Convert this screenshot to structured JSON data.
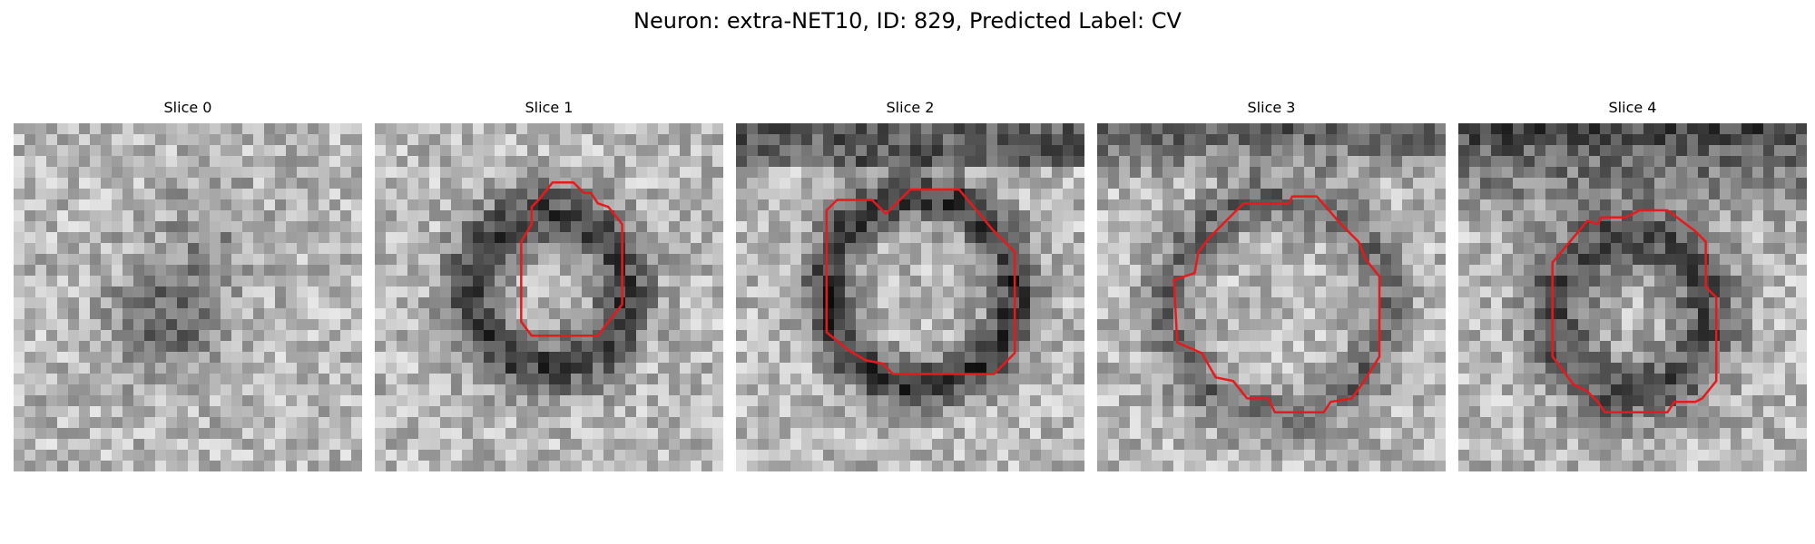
{
  "figure": {
    "title": "Neuron: extra-NET10, ID: 829, Predicted Label: CV"
  },
  "panels": [
    {
      "title": "Slice 0",
      "seed": 11,
      "contour": []
    },
    {
      "title": "Slice 1",
      "seed": 23,
      "contour": [
        [
          0.47,
          0.22
        ],
        [
          0.51,
          0.17
        ],
        [
          0.57,
          0.17
        ],
        [
          0.6,
          0.2
        ],
        [
          0.62,
          0.2
        ],
        [
          0.64,
          0.23
        ],
        [
          0.67,
          0.24
        ],
        [
          0.71,
          0.29
        ],
        [
          0.71,
          0.52
        ],
        [
          0.67,
          0.57
        ],
        [
          0.64,
          0.61
        ],
        [
          0.45,
          0.61
        ],
        [
          0.42,
          0.57
        ],
        [
          0.42,
          0.34
        ],
        [
          0.45,
          0.29
        ],
        [
          0.45,
          0.24
        ]
      ]
    },
    {
      "title": "Slice 2",
      "seed": 37,
      "contour": [
        [
          0.26,
          0.25
        ],
        [
          0.29,
          0.22
        ],
        [
          0.39,
          0.22
        ],
        [
          0.43,
          0.26
        ],
        [
          0.47,
          0.22
        ],
        [
          0.5,
          0.19
        ],
        [
          0.64,
          0.19
        ],
        [
          0.69,
          0.25
        ],
        [
          0.74,
          0.31
        ],
        [
          0.8,
          0.37
        ],
        [
          0.8,
          0.66
        ],
        [
          0.74,
          0.72
        ],
        [
          0.45,
          0.72
        ],
        [
          0.42,
          0.69
        ],
        [
          0.37,
          0.68
        ],
        [
          0.32,
          0.65
        ],
        [
          0.26,
          0.6
        ]
      ]
    },
    {
      "title": "Slice 3",
      "seed": 51,
      "contour": [
        [
          0.28,
          0.43
        ],
        [
          0.29,
          0.37
        ],
        [
          0.32,
          0.33
        ],
        [
          0.38,
          0.27
        ],
        [
          0.42,
          0.23
        ],
        [
          0.55,
          0.23
        ],
        [
          0.56,
          0.21
        ],
        [
          0.63,
          0.21
        ],
        [
          0.7,
          0.29
        ],
        [
          0.75,
          0.34
        ],
        [
          0.77,
          0.39
        ],
        [
          0.81,
          0.44
        ],
        [
          0.81,
          0.67
        ],
        [
          0.76,
          0.75
        ],
        [
          0.73,
          0.79
        ],
        [
          0.67,
          0.8
        ],
        [
          0.65,
          0.83
        ],
        [
          0.51,
          0.83
        ],
        [
          0.49,
          0.79
        ],
        [
          0.43,
          0.79
        ],
        [
          0.39,
          0.74
        ],
        [
          0.34,
          0.73
        ],
        [
          0.3,
          0.66
        ],
        [
          0.23,
          0.63
        ],
        [
          0.22,
          0.45
        ]
      ]
    },
    {
      "title": "Slice 4",
      "seed": 67,
      "contour": [
        [
          0.27,
          0.4
        ],
        [
          0.32,
          0.34
        ],
        [
          0.37,
          0.28
        ],
        [
          0.4,
          0.29
        ],
        [
          0.41,
          0.27
        ],
        [
          0.48,
          0.27
        ],
        [
          0.52,
          0.25
        ],
        [
          0.6,
          0.25
        ],
        [
          0.64,
          0.28
        ],
        [
          0.68,
          0.31
        ],
        [
          0.71,
          0.34
        ],
        [
          0.71,
          0.47
        ],
        [
          0.74,
          0.5
        ],
        [
          0.74,
          0.74
        ],
        [
          0.7,
          0.79
        ],
        [
          0.68,
          0.8
        ],
        [
          0.62,
          0.8
        ],
        [
          0.6,
          0.83
        ],
        [
          0.42,
          0.83
        ],
        [
          0.4,
          0.8
        ],
        [
          0.37,
          0.77
        ],
        [
          0.33,
          0.75
        ],
        [
          0.27,
          0.67
        ]
      ]
    }
  ],
  "colors": {
    "contour": "#e8191c"
  }
}
